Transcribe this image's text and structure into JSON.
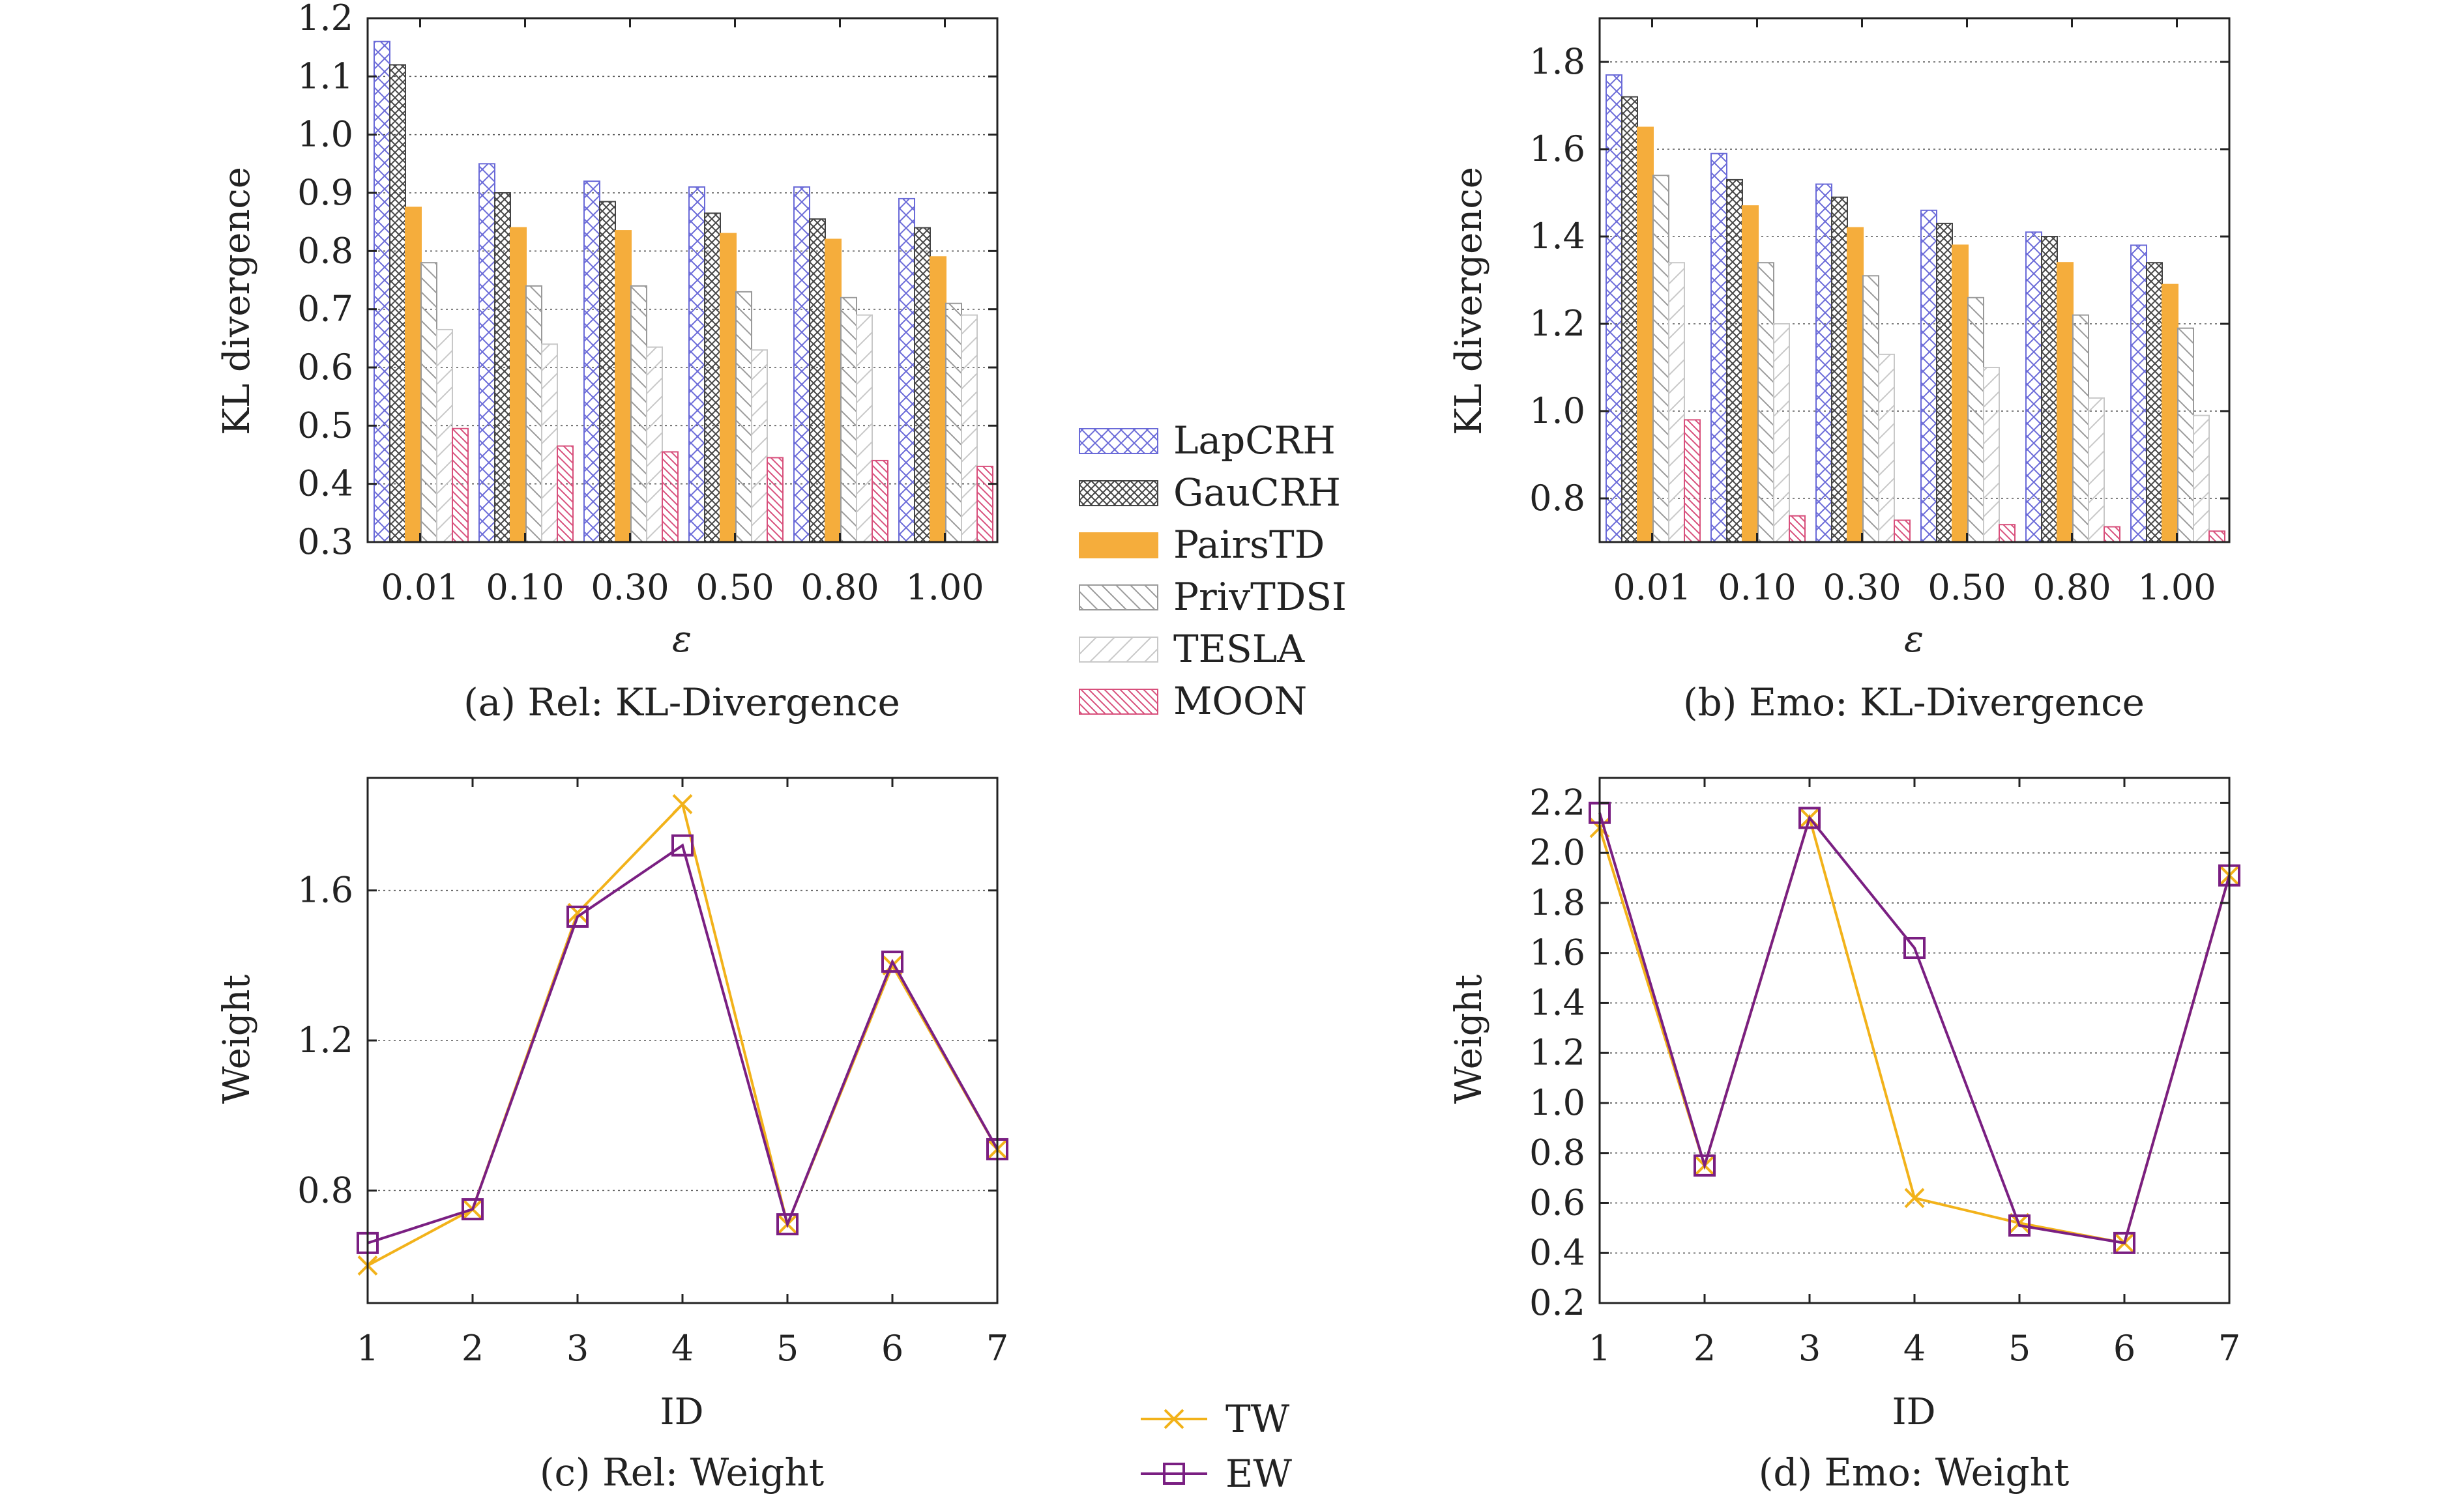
{
  "colors": {
    "LapCRH": "#6a6ad8",
    "GauCRH": "#444444",
    "PairsTD": "#f5ad3c",
    "PrivTDSI": "#9a9a9a",
    "TESLA": "#c8c8c8",
    "MOON": "#d8507c",
    "TW": "#f2b21a",
    "EW": "#7a1f82"
  },
  "chart_data": [
    {
      "type": "bar",
      "caption": "(a) Rel: KL-Divergence",
      "xlabel": "ε",
      "ylabel": "KL divergence",
      "ylim": [
        0.3,
        1.2
      ],
      "yticks": [
        "0.3",
        "0.4",
        "0.5",
        "0.6",
        "0.7",
        "0.8",
        "0.9",
        "1.0",
        "1.1",
        "1.2"
      ],
      "grid": true,
      "categories": [
        "0.01",
        "0.10",
        "0.30",
        "0.50",
        "0.80",
        "1.00"
      ],
      "series": [
        {
          "name": "LapCRH",
          "values": [
            1.16,
            0.95,
            0.92,
            0.91,
            0.91,
            0.89
          ]
        },
        {
          "name": "GauCRH",
          "values": [
            1.12,
            0.9,
            0.885,
            0.865,
            0.855,
            0.84
          ]
        },
        {
          "name": "PairsTD",
          "values": [
            0.875,
            0.84,
            0.835,
            0.83,
            0.82,
            0.79
          ]
        },
        {
          "name": "PrivTDSI",
          "values": [
            0.78,
            0.74,
            0.74,
            0.73,
            0.72,
            0.71
          ]
        },
        {
          "name": "TESLA",
          "values": [
            0.665,
            0.64,
            0.635,
            0.63,
            0.69,
            0.69
          ]
        },
        {
          "name": "MOON",
          "values": [
            0.495,
            0.465,
            0.455,
            0.445,
            0.44,
            0.43
          ]
        }
      ]
    },
    {
      "type": "bar",
      "caption": "(b) Emo: KL-Divergence",
      "xlabel": "ε",
      "ylabel": "KL divergence",
      "ylim": [
        0.7,
        1.9
      ],
      "yticks": [
        "0.8",
        "1.0",
        "1.2",
        "1.4",
        "1.6",
        "1.8"
      ],
      "grid": true,
      "categories": [
        "0.01",
        "0.10",
        "0.30",
        "0.50",
        "0.80",
        "1.00"
      ],
      "series": [
        {
          "name": "LapCRH",
          "values": [
            1.77,
            1.59,
            1.52,
            1.46,
            1.41,
            1.38
          ]
        },
        {
          "name": "GauCRH",
          "values": [
            1.72,
            1.53,
            1.49,
            1.43,
            1.4,
            1.34
          ]
        },
        {
          "name": "PairsTD",
          "values": [
            1.65,
            1.47,
            1.42,
            1.38,
            1.34,
            1.29
          ]
        },
        {
          "name": "PrivTDSI",
          "values": [
            1.54,
            1.34,
            1.31,
            1.26,
            1.22,
            1.19
          ]
        },
        {
          "name": "TESLA",
          "values": [
            1.34,
            1.2,
            1.13,
            1.1,
            1.03,
            0.99
          ]
        },
        {
          "name": "MOON",
          "values": [
            0.98,
            0.76,
            0.75,
            0.74,
            0.735,
            0.725
          ]
        }
      ]
    },
    {
      "type": "line",
      "caption": "(c) Rel: Weight",
      "xlabel": "ID",
      "ylabel": "Weight",
      "xlim": [
        1,
        7
      ],
      "ylim": [
        0.5,
        1.9
      ],
      "yticks": [
        "0.8",
        "1.2",
        "1.6"
      ],
      "grid": true,
      "x": [
        1,
        2,
        3,
        4,
        5,
        6,
        7
      ],
      "series": [
        {
          "name": "TW",
          "values": [
            0.6,
            0.75,
            1.54,
            1.83,
            0.71,
            1.4,
            0.91
          ]
        },
        {
          "name": "EW",
          "values": [
            0.66,
            0.75,
            1.53,
            1.72,
            0.71,
            1.41,
            0.91
          ]
        }
      ]
    },
    {
      "type": "line",
      "caption": "(d) Emo: Weight",
      "xlabel": "ID",
      "ylabel": "Weight",
      "xlim": [
        1,
        7
      ],
      "ylim": [
        0.2,
        2.3
      ],
      "yticks": [
        "0.2",
        "0.4",
        "0.6",
        "0.8",
        "1.0",
        "1.2",
        "1.4",
        "1.6",
        "1.8",
        "2.0",
        "2.2"
      ],
      "grid": true,
      "x": [
        1,
        2,
        3,
        4,
        5,
        6,
        7
      ],
      "series": [
        {
          "name": "TW",
          "values": [
            2.1,
            0.75,
            2.14,
            0.62,
            0.52,
            0.44,
            1.91
          ]
        },
        {
          "name": "EW",
          "values": [
            2.16,
            0.75,
            2.14,
            1.62,
            0.51,
            0.44,
            1.91
          ]
        }
      ]
    }
  ],
  "legends": {
    "bar": [
      "LapCRH",
      "GauCRH",
      "PairsTD",
      "PrivTDSI",
      "TESLA",
      "MOON"
    ],
    "line": [
      "TW",
      "EW"
    ]
  }
}
